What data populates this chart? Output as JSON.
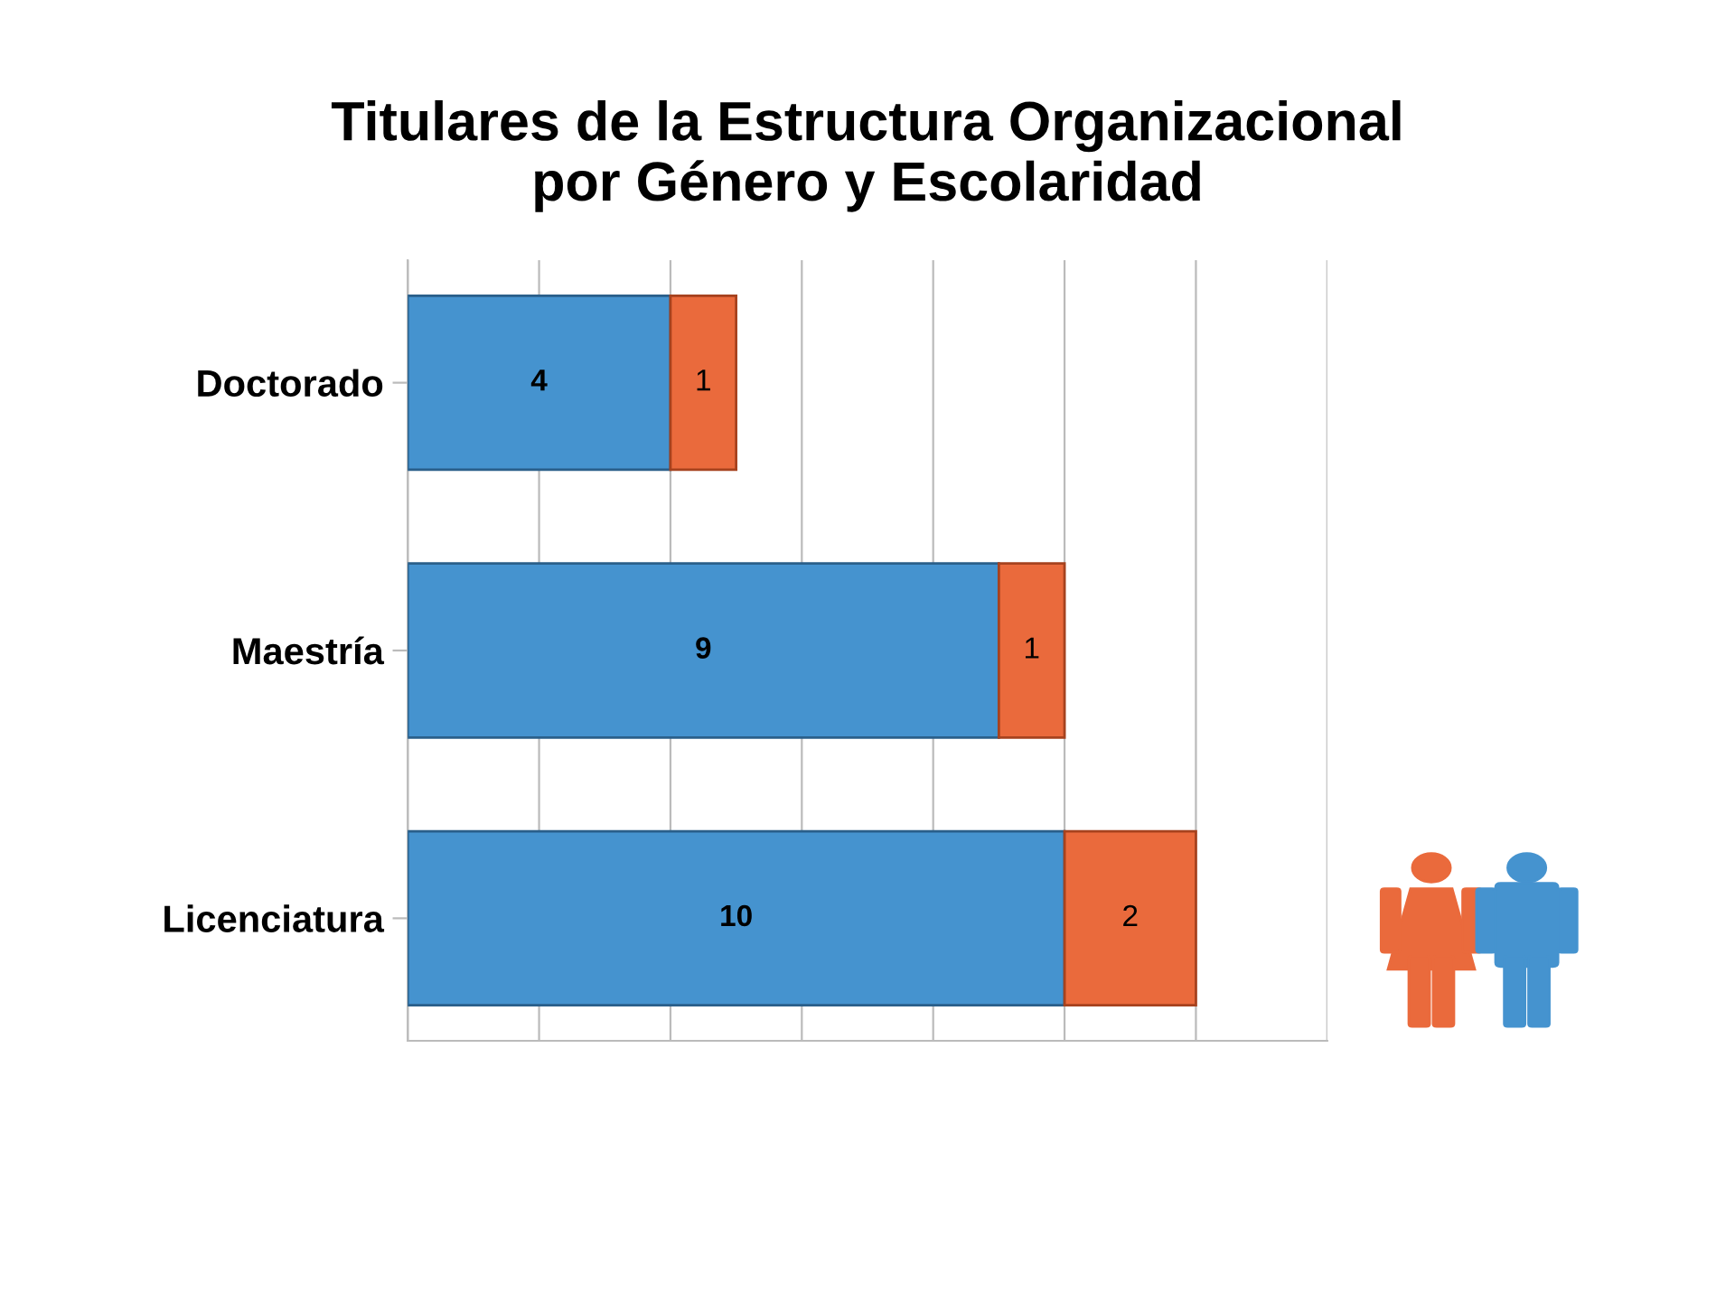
{
  "chart_data": {
    "type": "bar",
    "orientation": "horizontal",
    "stacked": true,
    "title": "Titulares de la Estructura Organizacional\npor Género y Escolaridad",
    "categories": [
      "Doctorado",
      "Maestría",
      "Licenciatura"
    ],
    "series": [
      {
        "color": "#4593cf",
        "values": [
          4,
          9,
          10
        ]
      },
      {
        "color": "#ea6a3c",
        "values": [
          1,
          1,
          2
        ]
      }
    ],
    "xlim": [
      0,
      14
    ],
    "xticks": [
      {
        "value": 0,
        "label": null
      },
      {
        "value": 2,
        "label": null
      },
      {
        "value": 4,
        "label": null
      },
      {
        "value": 6,
        "label": null
      },
      {
        "value": 8,
        "label": null
      },
      {
        "value": 10,
        "label": null
      },
      {
        "value": 12,
        "label": null
      },
      {
        "value": 14,
        "label": null
      }
    ],
    "tick_labels": "y",
    "grid": "x",
    "data_labels": true
  }
}
